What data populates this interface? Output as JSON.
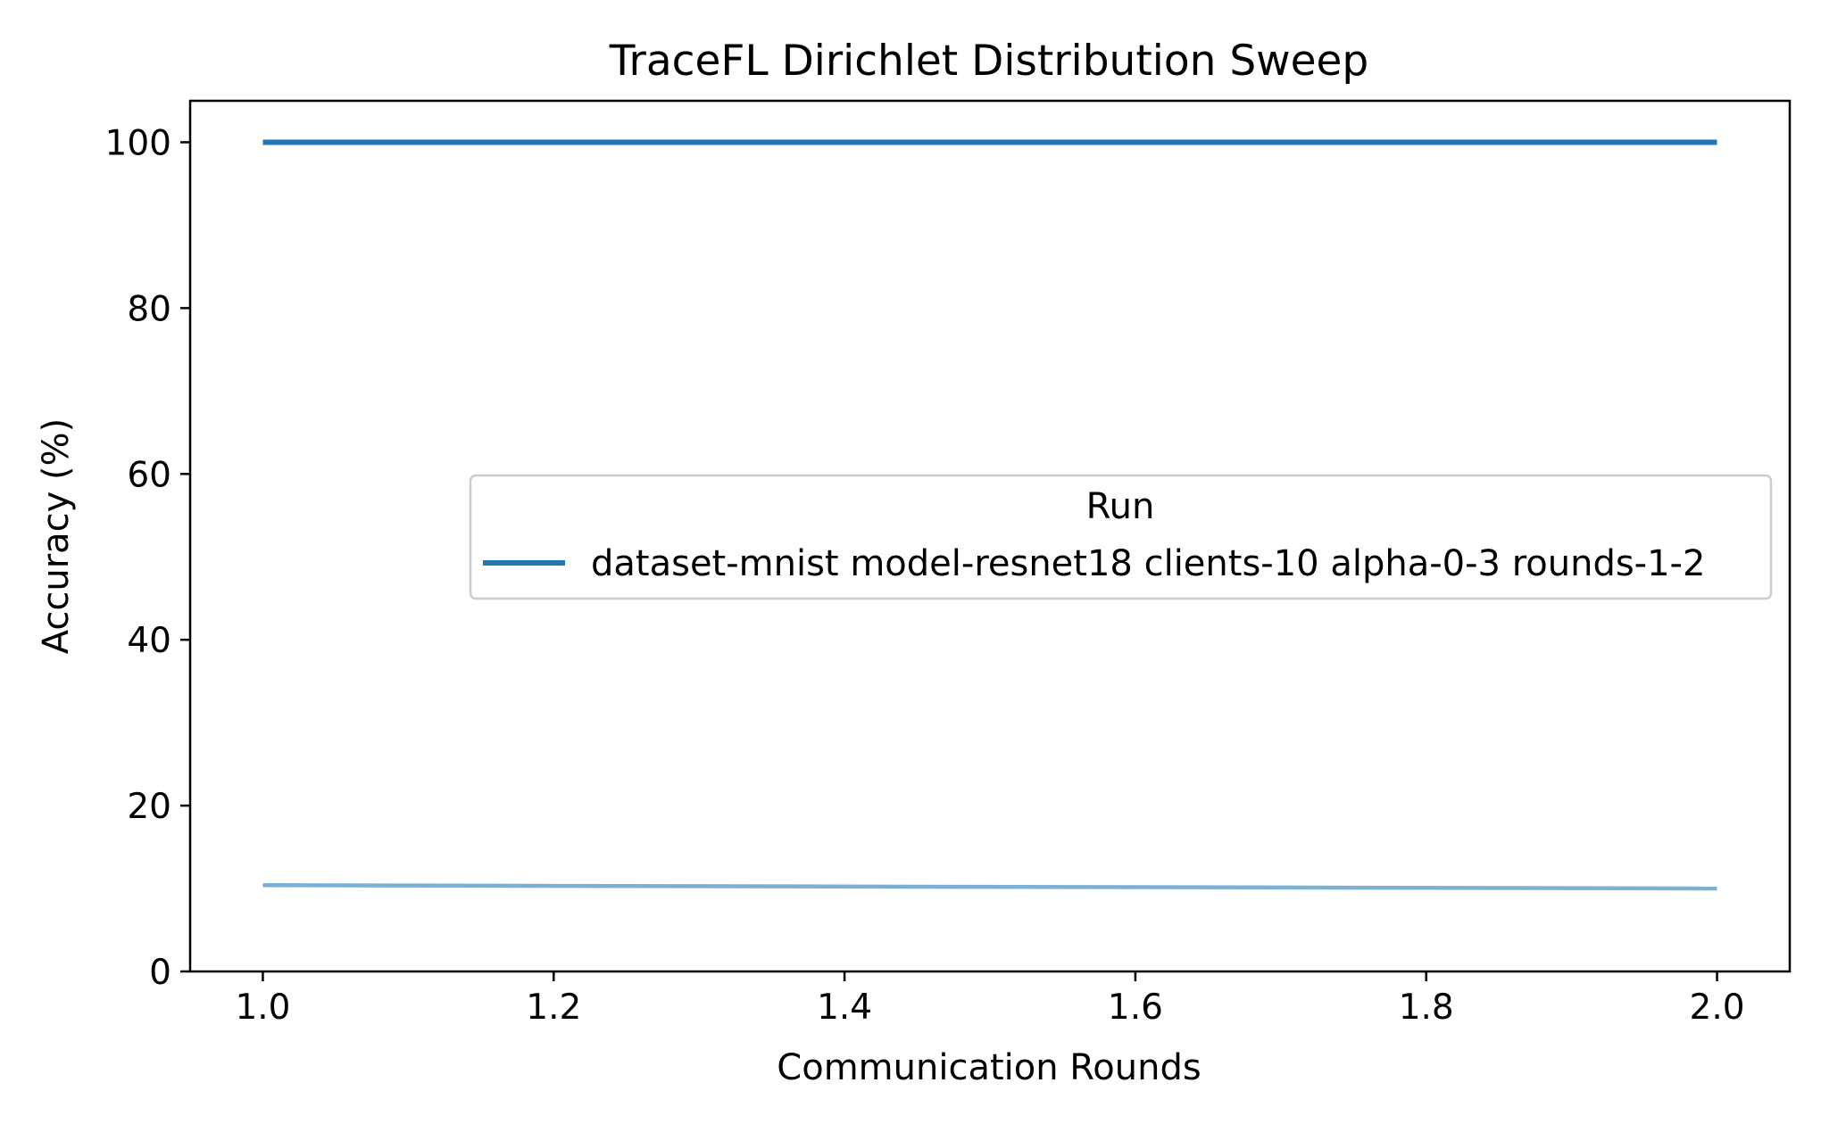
{
  "chart_data": {
    "type": "line",
    "title": "TraceFL Dirichlet Distribution Sweep",
    "xlabel": "Communication Rounds",
    "ylabel": "Accuracy (%)",
    "xlim": [
      0.95,
      2.05
    ],
    "ylim": [
      0,
      105
    ],
    "x_ticks": [
      1.0,
      1.2,
      1.4,
      1.6,
      1.8,
      2.0
    ],
    "x_tick_labels": [
      "1.0",
      "1.2",
      "1.4",
      "1.6",
      "1.8",
      "2.0"
    ],
    "y_ticks": [
      0,
      20,
      40,
      60,
      80,
      100
    ],
    "y_tick_labels": [
      "0",
      "20",
      "40",
      "60",
      "80",
      "100"
    ],
    "grid": false,
    "legend": {
      "title": "Run",
      "placement": "center-right"
    },
    "series": [
      {
        "name": "dataset-mnist model-resnet18 clients-10 alpha-0-3 rounds-1-2",
        "color": "#1f77b4",
        "x": [
          1.0,
          2.0
        ],
        "y": [
          100.0,
          100.0
        ],
        "in_legend": true
      },
      {
        "color": "#7bafd4",
        "x": [
          1.0,
          2.0
        ],
        "y": [
          10.4,
          10.0
        ],
        "in_legend": false
      }
    ]
  }
}
